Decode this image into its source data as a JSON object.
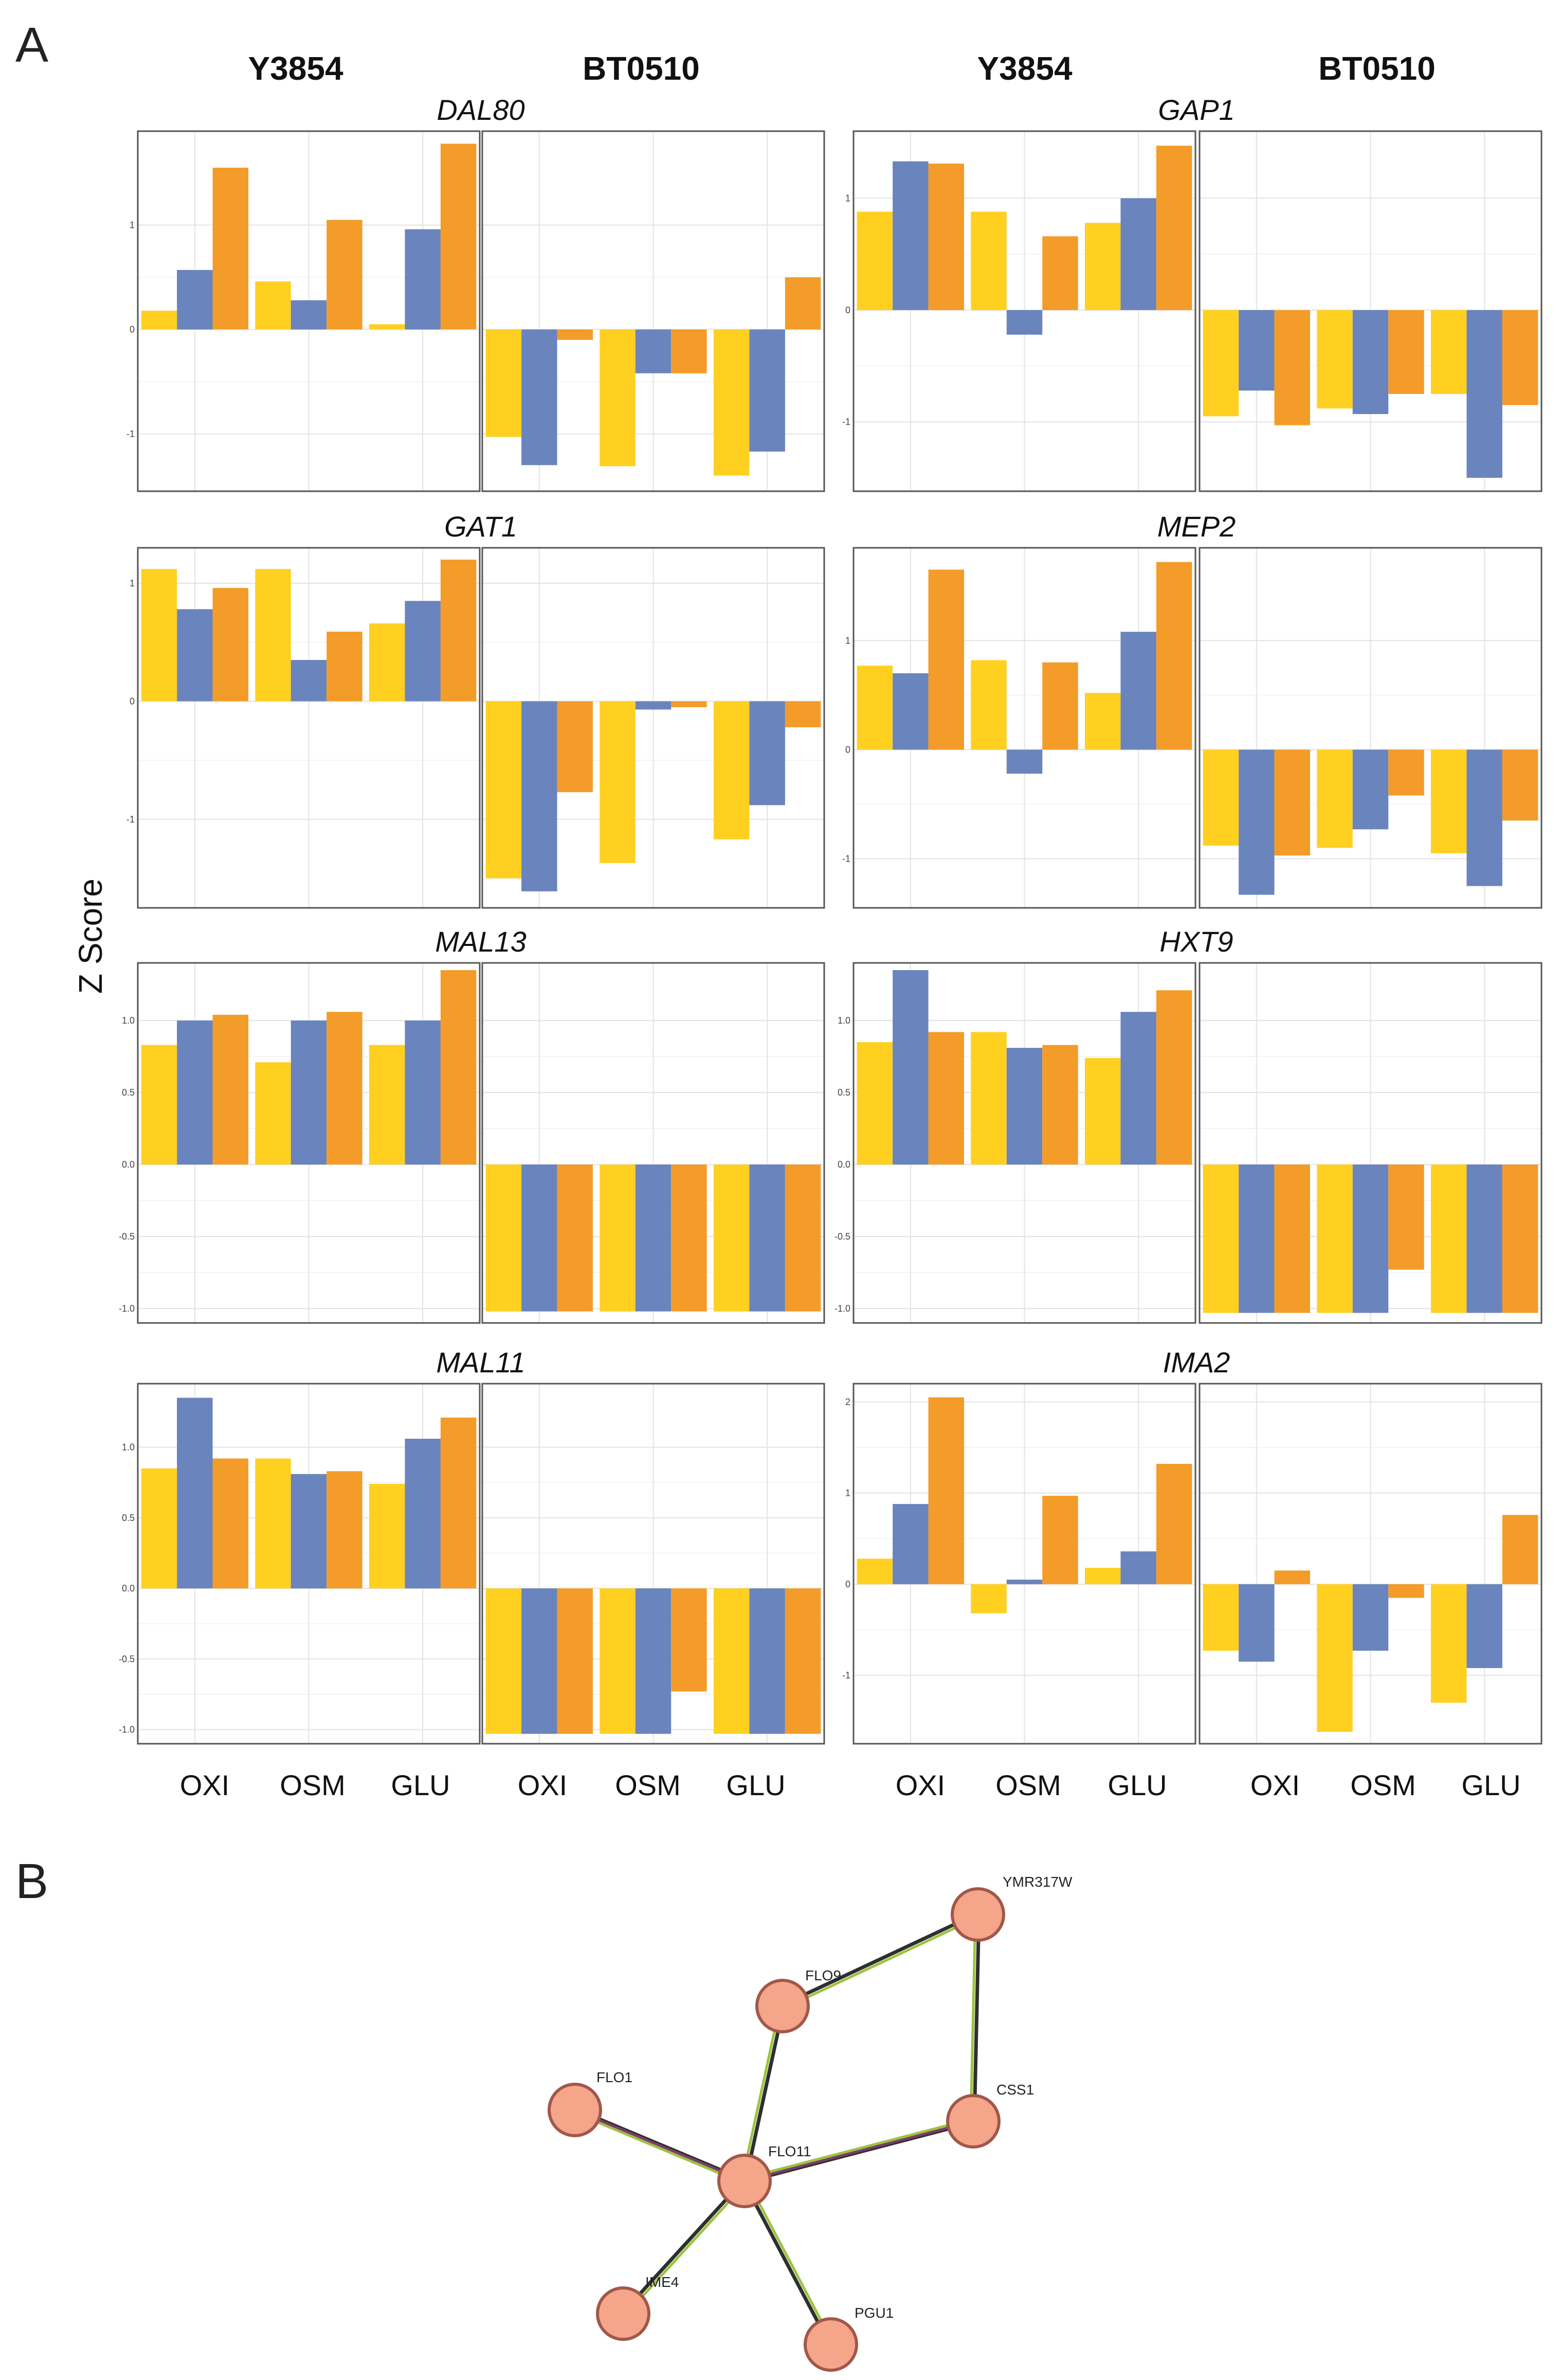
{
  "figure": {
    "panel_a_letter": "A",
    "panel_b_letter": "B",
    "ylabel": "Z Score",
    "strains": [
      "Y3854",
      "BT0510",
      "Y3854",
      "BT0510"
    ],
    "categories": [
      "OXI",
      "OSM",
      "GLU"
    ]
  },
  "colors": {
    "series": [
      "#FFD020",
      "#6A84BE",
      "#F39C2A"
    ],
    "frame": "#555555",
    "grid_major": "#e3e3e3",
    "grid_minor": "#f1f1f1",
    "node_fill": "#F4A58A",
    "node_stroke": "#A0584A",
    "edge_dark": "#2f2f2f",
    "edge_green": "#9BC43F",
    "edge_purple": "#7A3C6A"
  },
  "chart_data": [
    {
      "type": "bar",
      "gene": "DAL80",
      "categories": [
        "OXI",
        "OSM",
        "GLU"
      ],
      "ylim": [
        -1.55,
        1.9
      ],
      "ticks": [
        -1,
        0,
        1
      ],
      "series": [
        {
          "name": "Y3854",
          "values": [
            [
              0.18,
              0.57,
              1.55
            ],
            [
              0.46,
              0.28,
              1.05
            ],
            [
              0.05,
              0.96,
              1.78
            ]
          ]
        },
        {
          "name": "BT0510",
          "values": [
            [
              -1.03,
              -1.3,
              -0.1
            ],
            [
              -1.31,
              -0.42,
              -0.42
            ],
            [
              -1.4,
              -1.17,
              0.5
            ]
          ]
        }
      ]
    },
    {
      "type": "bar",
      "gene": "GAP1",
      "categories": [
        "OXI",
        "OSM",
        "GLU"
      ],
      "ylim": [
        -1.62,
        1.6
      ],
      "ticks": [
        -1,
        0,
        1
      ],
      "series": [
        {
          "name": "Y3854",
          "values": [
            [
              0.88,
              1.33,
              1.31
            ],
            [
              0.88,
              -0.22,
              0.66
            ],
            [
              0.78,
              1.0,
              1.47
            ]
          ]
        },
        {
          "name": "BT0510",
          "values": [
            [
              -0.95,
              -0.72,
              -1.03
            ],
            [
              -0.88,
              -0.93,
              -0.75
            ],
            [
              -0.75,
              -1.5,
              -0.85
            ]
          ]
        }
      ]
    },
    {
      "type": "bar",
      "gene": "GAT1",
      "categories": [
        "OXI",
        "OSM",
        "GLU"
      ],
      "ylim": [
        -1.75,
        1.3
      ],
      "ticks": [
        -1,
        0,
        1
      ],
      "series": [
        {
          "name": "Y3854",
          "values": [
            [
              1.12,
              0.78,
              0.96
            ],
            [
              1.12,
              0.35,
              0.59
            ],
            [
              0.66,
              0.85,
              1.2
            ]
          ]
        },
        {
          "name": "BT0510",
          "values": [
            [
              -1.5,
              -1.61,
              -0.77
            ],
            [
              -1.37,
              -0.07,
              -0.05
            ],
            [
              -1.17,
              -0.88,
              -0.22
            ]
          ]
        }
      ]
    },
    {
      "type": "bar",
      "gene": "MEP2",
      "categories": [
        "OXI",
        "OSM",
        "GLU"
      ],
      "ylim": [
        -1.45,
        1.85
      ],
      "ticks": [
        -1,
        0,
        1
      ],
      "series": [
        {
          "name": "Y3854",
          "values": [
            [
              0.77,
              0.7,
              1.65
            ],
            [
              0.82,
              -0.22,
              0.8
            ],
            [
              0.52,
              1.08,
              1.72
            ]
          ]
        },
        {
          "name": "BT0510",
          "values": [
            [
              -0.88,
              -1.33,
              -0.97
            ],
            [
              -0.9,
              -0.73,
              -0.42
            ],
            [
              -0.95,
              -1.25,
              -0.65
            ]
          ]
        }
      ]
    },
    {
      "type": "bar",
      "gene": "MAL13",
      "categories": [
        "OXI",
        "OSM",
        "GLU"
      ],
      "ylim": [
        -1.1,
        1.4
      ],
      "ticks": [
        -1.0,
        -0.5,
        0.0,
        0.5,
        1.0
      ],
      "series": [
        {
          "name": "Y3854",
          "values": [
            [
              0.83,
              1.0,
              1.04
            ],
            [
              0.71,
              1.0,
              1.06
            ],
            [
              0.83,
              1.0,
              1.35
            ]
          ]
        },
        {
          "name": "BT0510",
          "values": [
            [
              -1.02,
              -1.02,
              -1.02
            ],
            [
              -1.02,
              -1.02,
              -1.02
            ],
            [
              -1.02,
              -1.02,
              -1.02
            ]
          ]
        }
      ]
    },
    {
      "type": "bar",
      "gene": "HXT9",
      "categories": [
        "OXI",
        "OSM",
        "GLU"
      ],
      "ylim": [
        -1.1,
        1.4
      ],
      "ticks": [
        -1.0,
        -0.5,
        0.0,
        0.5,
        1.0
      ],
      "series": [
        {
          "name": "Y3854",
          "values": [
            [
              0.85,
              1.35,
              0.92
            ],
            [
              0.92,
              0.81,
              0.83
            ],
            [
              0.74,
              1.06,
              1.21
            ]
          ]
        },
        {
          "name": "BT0510",
          "values": [
            [
              -1.03,
              -1.03,
              -1.03
            ],
            [
              -1.03,
              -1.03,
              -0.73
            ],
            [
              -1.03,
              -1.03,
              -1.03
            ]
          ]
        }
      ]
    },
    {
      "type": "bar",
      "gene": "MAL11",
      "categories": [
        "OXI",
        "OSM",
        "GLU"
      ],
      "ylim": [
        -1.1,
        1.45
      ],
      "ticks": [
        -1.0,
        -0.5,
        0.0,
        0.5,
        1.0
      ],
      "series": [
        {
          "name": "Y3854",
          "values": [
            [
              0.85,
              1.35,
              0.92
            ],
            [
              0.92,
              0.81,
              0.83
            ],
            [
              0.74,
              1.06,
              1.21
            ]
          ]
        },
        {
          "name": "BT0510",
          "values": [
            [
              -1.03,
              -1.03,
              -1.03
            ],
            [
              -1.03,
              -1.03,
              -0.73
            ],
            [
              -1.03,
              -1.03,
              -1.03
            ]
          ]
        }
      ]
    },
    {
      "type": "bar",
      "gene": "IMA2",
      "categories": [
        "OXI",
        "OSM",
        "GLU"
      ],
      "ylim": [
        -1.75,
        2.2
      ],
      "ticks": [
        -1,
        0,
        1,
        2
      ],
      "series": [
        {
          "name": "Y3854",
          "values": [
            [
              0.28,
              0.88,
              2.05
            ],
            [
              -0.32,
              0.05,
              0.97
            ],
            [
              0.18,
              0.36,
              1.32
            ]
          ]
        },
        {
          "name": "BT0510",
          "values": [
            [
              -0.73,
              -0.85,
              0.15
            ],
            [
              -1.62,
              -0.73,
              -0.15
            ],
            [
              -1.3,
              -0.92,
              0.76
            ]
          ]
        }
      ]
    }
  ],
  "network": {
    "nodes": [
      "YMR317W",
      "FLO9",
      "FLO1",
      "CSS1",
      "FLO11",
      "IME4",
      "PGU1"
    ],
    "edges": [
      [
        "FLO9",
        "YMR317W"
      ],
      [
        "YMR317W",
        "CSS1"
      ],
      [
        "FLO9",
        "FLO11"
      ],
      [
        "FLO1",
        "FLO11"
      ],
      [
        "CSS1",
        "FLO11"
      ],
      [
        "IME4",
        "FLO11"
      ],
      [
        "PGU1",
        "FLO11"
      ]
    ]
  }
}
